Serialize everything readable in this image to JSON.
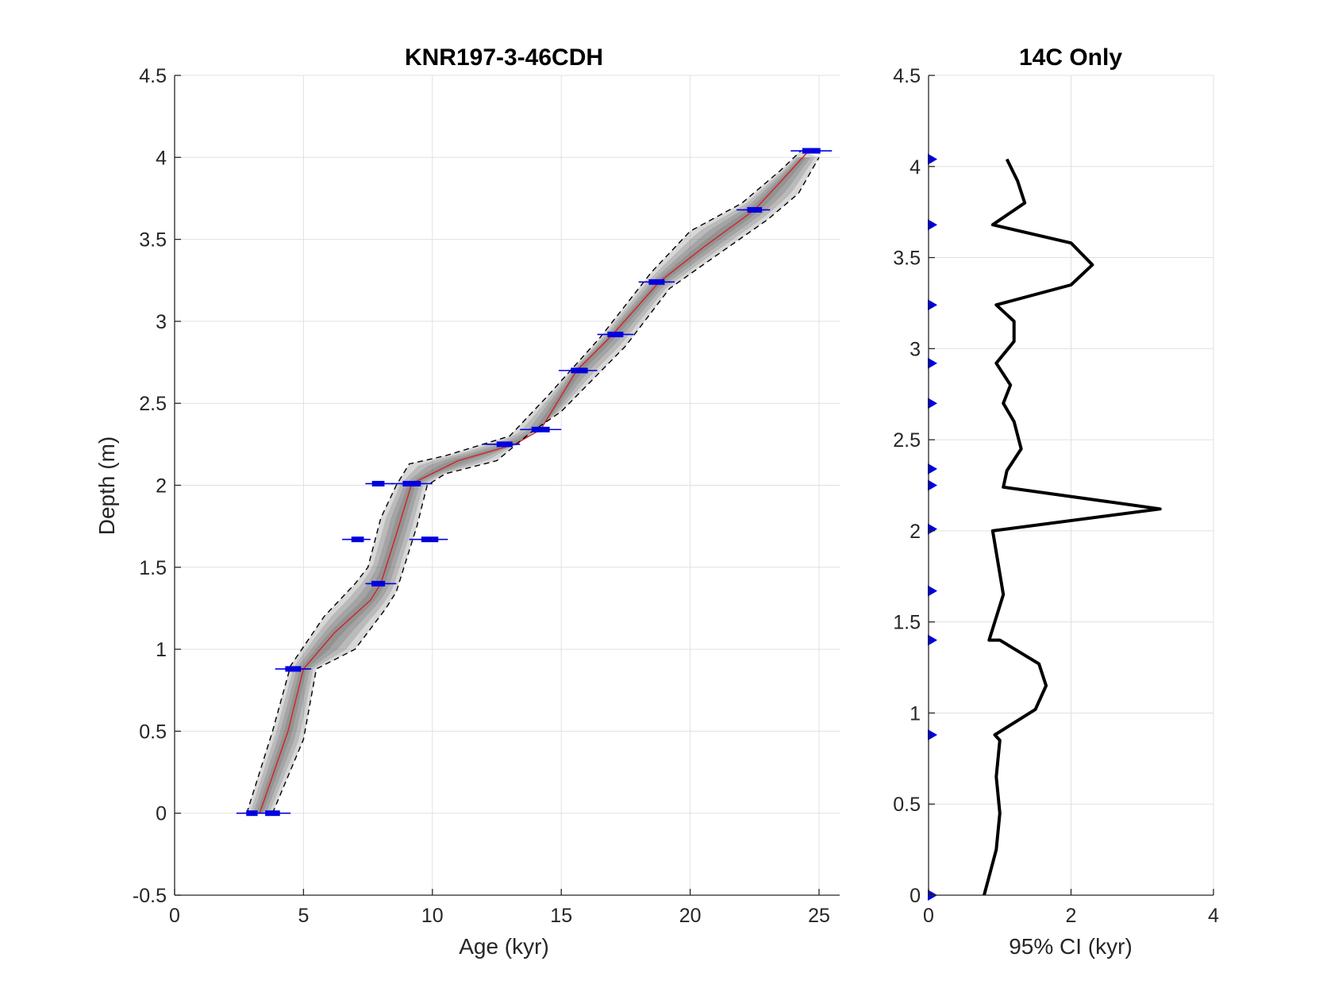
{
  "colors": {
    "axis": "#262626",
    "grid": "#e0e0e0",
    "median": "#d62020",
    "envelope": "#000000",
    "ensemble": "#8c8c8c",
    "dates": "#0000e0",
    "ci_line": "#000000",
    "markers": "#0000e0"
  },
  "chart_data": [
    {
      "type": "line",
      "title": "KNR197-3-46CDH",
      "xlabel": "Age (kyr)",
      "ylabel": "Depth (m)",
      "xlim": [
        0,
        25.8
      ],
      "ylim": [
        -0.5,
        4.5
      ],
      "xticks": [
        0,
        5,
        10,
        15,
        20,
        25
      ],
      "yticks": [
        -0.5,
        0,
        0.5,
        1,
        1.5,
        2,
        2.5,
        3,
        3.5,
        4,
        4.5
      ],
      "xtick_labels": [
        "0",
        "5",
        "10",
        "15",
        "20",
        "25"
      ],
      "ytick_labels": [
        "-0.5",
        "0",
        "0.5",
        "1",
        "1.5",
        "2",
        "2.5",
        "3",
        "3.5",
        "4",
        "4.5"
      ],
      "grid": true,
      "series": [
        {
          "role": "median",
          "points": [
            [
              3.3,
              0.0
            ],
            [
              4.4,
              0.5
            ],
            [
              5.0,
              0.88
            ],
            [
              6.2,
              1.1
            ],
            [
              7.6,
              1.3
            ],
            [
              8.0,
              1.4
            ],
            [
              8.6,
              1.7
            ],
            [
              9.2,
              2.01
            ],
            [
              11.0,
              2.15
            ],
            [
              13.2,
              2.25
            ],
            [
              14.2,
              2.34
            ],
            [
              15.6,
              2.7
            ],
            [
              17.0,
              2.92
            ],
            [
              18.8,
              3.24
            ],
            [
              20.5,
              3.45
            ],
            [
              22.5,
              3.68
            ],
            [
              23.5,
              3.85
            ],
            [
              24.6,
              4.04
            ]
          ]
        },
        {
          "role": "lower-envelope",
          "points": [
            [
              2.8,
              0.0
            ],
            [
              3.8,
              0.5
            ],
            [
              4.5,
              0.9
            ],
            [
              5.8,
              1.2
            ],
            [
              7.0,
              1.4
            ],
            [
              7.5,
              1.5
            ],
            [
              8.0,
              1.8
            ],
            [
              8.6,
              2.0
            ],
            [
              9.1,
              2.13
            ],
            [
              10.5,
              2.18
            ],
            [
              13.0,
              2.3
            ],
            [
              14.5,
              2.55
            ],
            [
              16.5,
              2.9
            ],
            [
              18.5,
              3.3
            ],
            [
              20.0,
              3.55
            ],
            [
              22.0,
              3.72
            ],
            [
              23.5,
              3.92
            ],
            [
              24.3,
              4.04
            ]
          ]
        },
        {
          "role": "upper-envelope",
          "points": [
            [
              3.8,
              0.0
            ],
            [
              5.0,
              0.45
            ],
            [
              5.5,
              0.88
            ],
            [
              7.0,
              1.0
            ],
            [
              8.2,
              1.25
            ],
            [
              8.6,
              1.35
            ],
            [
              9.4,
              1.75
            ],
            [
              9.8,
              2.0
            ],
            [
              10.5,
              2.07
            ],
            [
              12.5,
              2.15
            ],
            [
              13.8,
              2.32
            ],
            [
              15.0,
              2.45
            ],
            [
              17.5,
              2.85
            ],
            [
              19.2,
              3.2
            ],
            [
              21.0,
              3.4
            ],
            [
              23.0,
              3.62
            ],
            [
              24.2,
              3.78
            ],
            [
              25.0,
              4.0
            ]
          ]
        }
      ],
      "dates": [
        {
          "depth": 0.0,
          "age": 3.0,
          "min": 2.4,
          "max": 3.4
        },
        {
          "depth": 0.0,
          "age": 3.8,
          "min": 3.2,
          "max": 4.5
        },
        {
          "depth": 0.88,
          "age": 4.6,
          "min": 3.9,
          "max": 5.3
        },
        {
          "depth": 1.4,
          "age": 7.9,
          "min": 7.4,
          "max": 8.6
        },
        {
          "depth": 1.67,
          "age": 7.1,
          "min": 6.5,
          "max": 7.6
        },
        {
          "depth": 1.67,
          "age": 9.9,
          "min": 9.1,
          "max": 10.6
        },
        {
          "depth": 2.01,
          "age": 7.9,
          "min": 7.4,
          "max": 8.5
        },
        {
          "depth": 2.01,
          "age": 9.2,
          "min": 8.4,
          "max": 10.0
        },
        {
          "depth": 2.25,
          "age": 12.8,
          "min": 12.0,
          "max": 13.4
        },
        {
          "depth": 2.34,
          "age": 14.2,
          "min": 13.4,
          "max": 15.0
        },
        {
          "depth": 2.7,
          "age": 15.7,
          "min": 14.9,
          "max": 16.4
        },
        {
          "depth": 2.92,
          "age": 17.1,
          "min": 16.4,
          "max": 17.8
        },
        {
          "depth": 3.24,
          "age": 18.7,
          "min": 18.0,
          "max": 19.4
        },
        {
          "depth": 3.68,
          "age": 22.5,
          "min": 21.8,
          "max": 23.1
        },
        {
          "depth": 4.04,
          "age": 24.7,
          "min": 23.9,
          "max": 25.5
        }
      ]
    },
    {
      "type": "line",
      "title": "14C Only",
      "xlabel": "95% CI (kyr)",
      "ylabel": "",
      "xlim": [
        0,
        4
      ],
      "ylim": [
        0,
        4.5
      ],
      "xticks": [
        0,
        2,
        4
      ],
      "yticks": [
        0,
        0.5,
        1,
        1.5,
        2,
        2.5,
        3,
        3.5,
        4,
        4.5
      ],
      "xtick_labels": [
        "0",
        "2",
        "4"
      ],
      "ytick_labels": [
        "0",
        "0.5",
        "1",
        "1.5",
        "2",
        "2.5",
        "3",
        "3.5",
        "4",
        "4.5"
      ],
      "grid": true,
      "series": [
        {
          "role": "ci-width",
          "points": [
            [
              0.78,
              0.0
            ],
            [
              0.95,
              0.25
            ],
            [
              1.0,
              0.45
            ],
            [
              0.95,
              0.65
            ],
            [
              1.0,
              0.85
            ],
            [
              0.93,
              0.88
            ],
            [
              1.5,
              1.02
            ],
            [
              1.65,
              1.15
            ],
            [
              1.55,
              1.27
            ],
            [
              1.0,
              1.4
            ],
            [
              0.85,
              1.4
            ],
            [
              1.05,
              1.65
            ],
            [
              0.9,
              2.0
            ],
            [
              3.25,
              2.12
            ],
            [
              1.05,
              2.24
            ],
            [
              1.1,
              2.33
            ],
            [
              1.3,
              2.45
            ],
            [
              1.2,
              2.6
            ],
            [
              1.05,
              2.7
            ],
            [
              1.15,
              2.8
            ],
            [
              0.95,
              2.92
            ],
            [
              1.2,
              3.04
            ],
            [
              1.2,
              3.15
            ],
            [
              0.95,
              3.24
            ],
            [
              2.0,
              3.35
            ],
            [
              2.3,
              3.46
            ],
            [
              2.0,
              3.58
            ],
            [
              0.9,
              3.68
            ],
            [
              1.35,
              3.8
            ],
            [
              1.25,
              3.92
            ],
            [
              1.1,
              4.04
            ]
          ]
        }
      ],
      "markers": [
        0.0,
        0.88,
        1.4,
        1.67,
        2.01,
        2.25,
        2.34,
        2.7,
        2.92,
        3.24,
        3.68,
        4.04
      ]
    }
  ]
}
